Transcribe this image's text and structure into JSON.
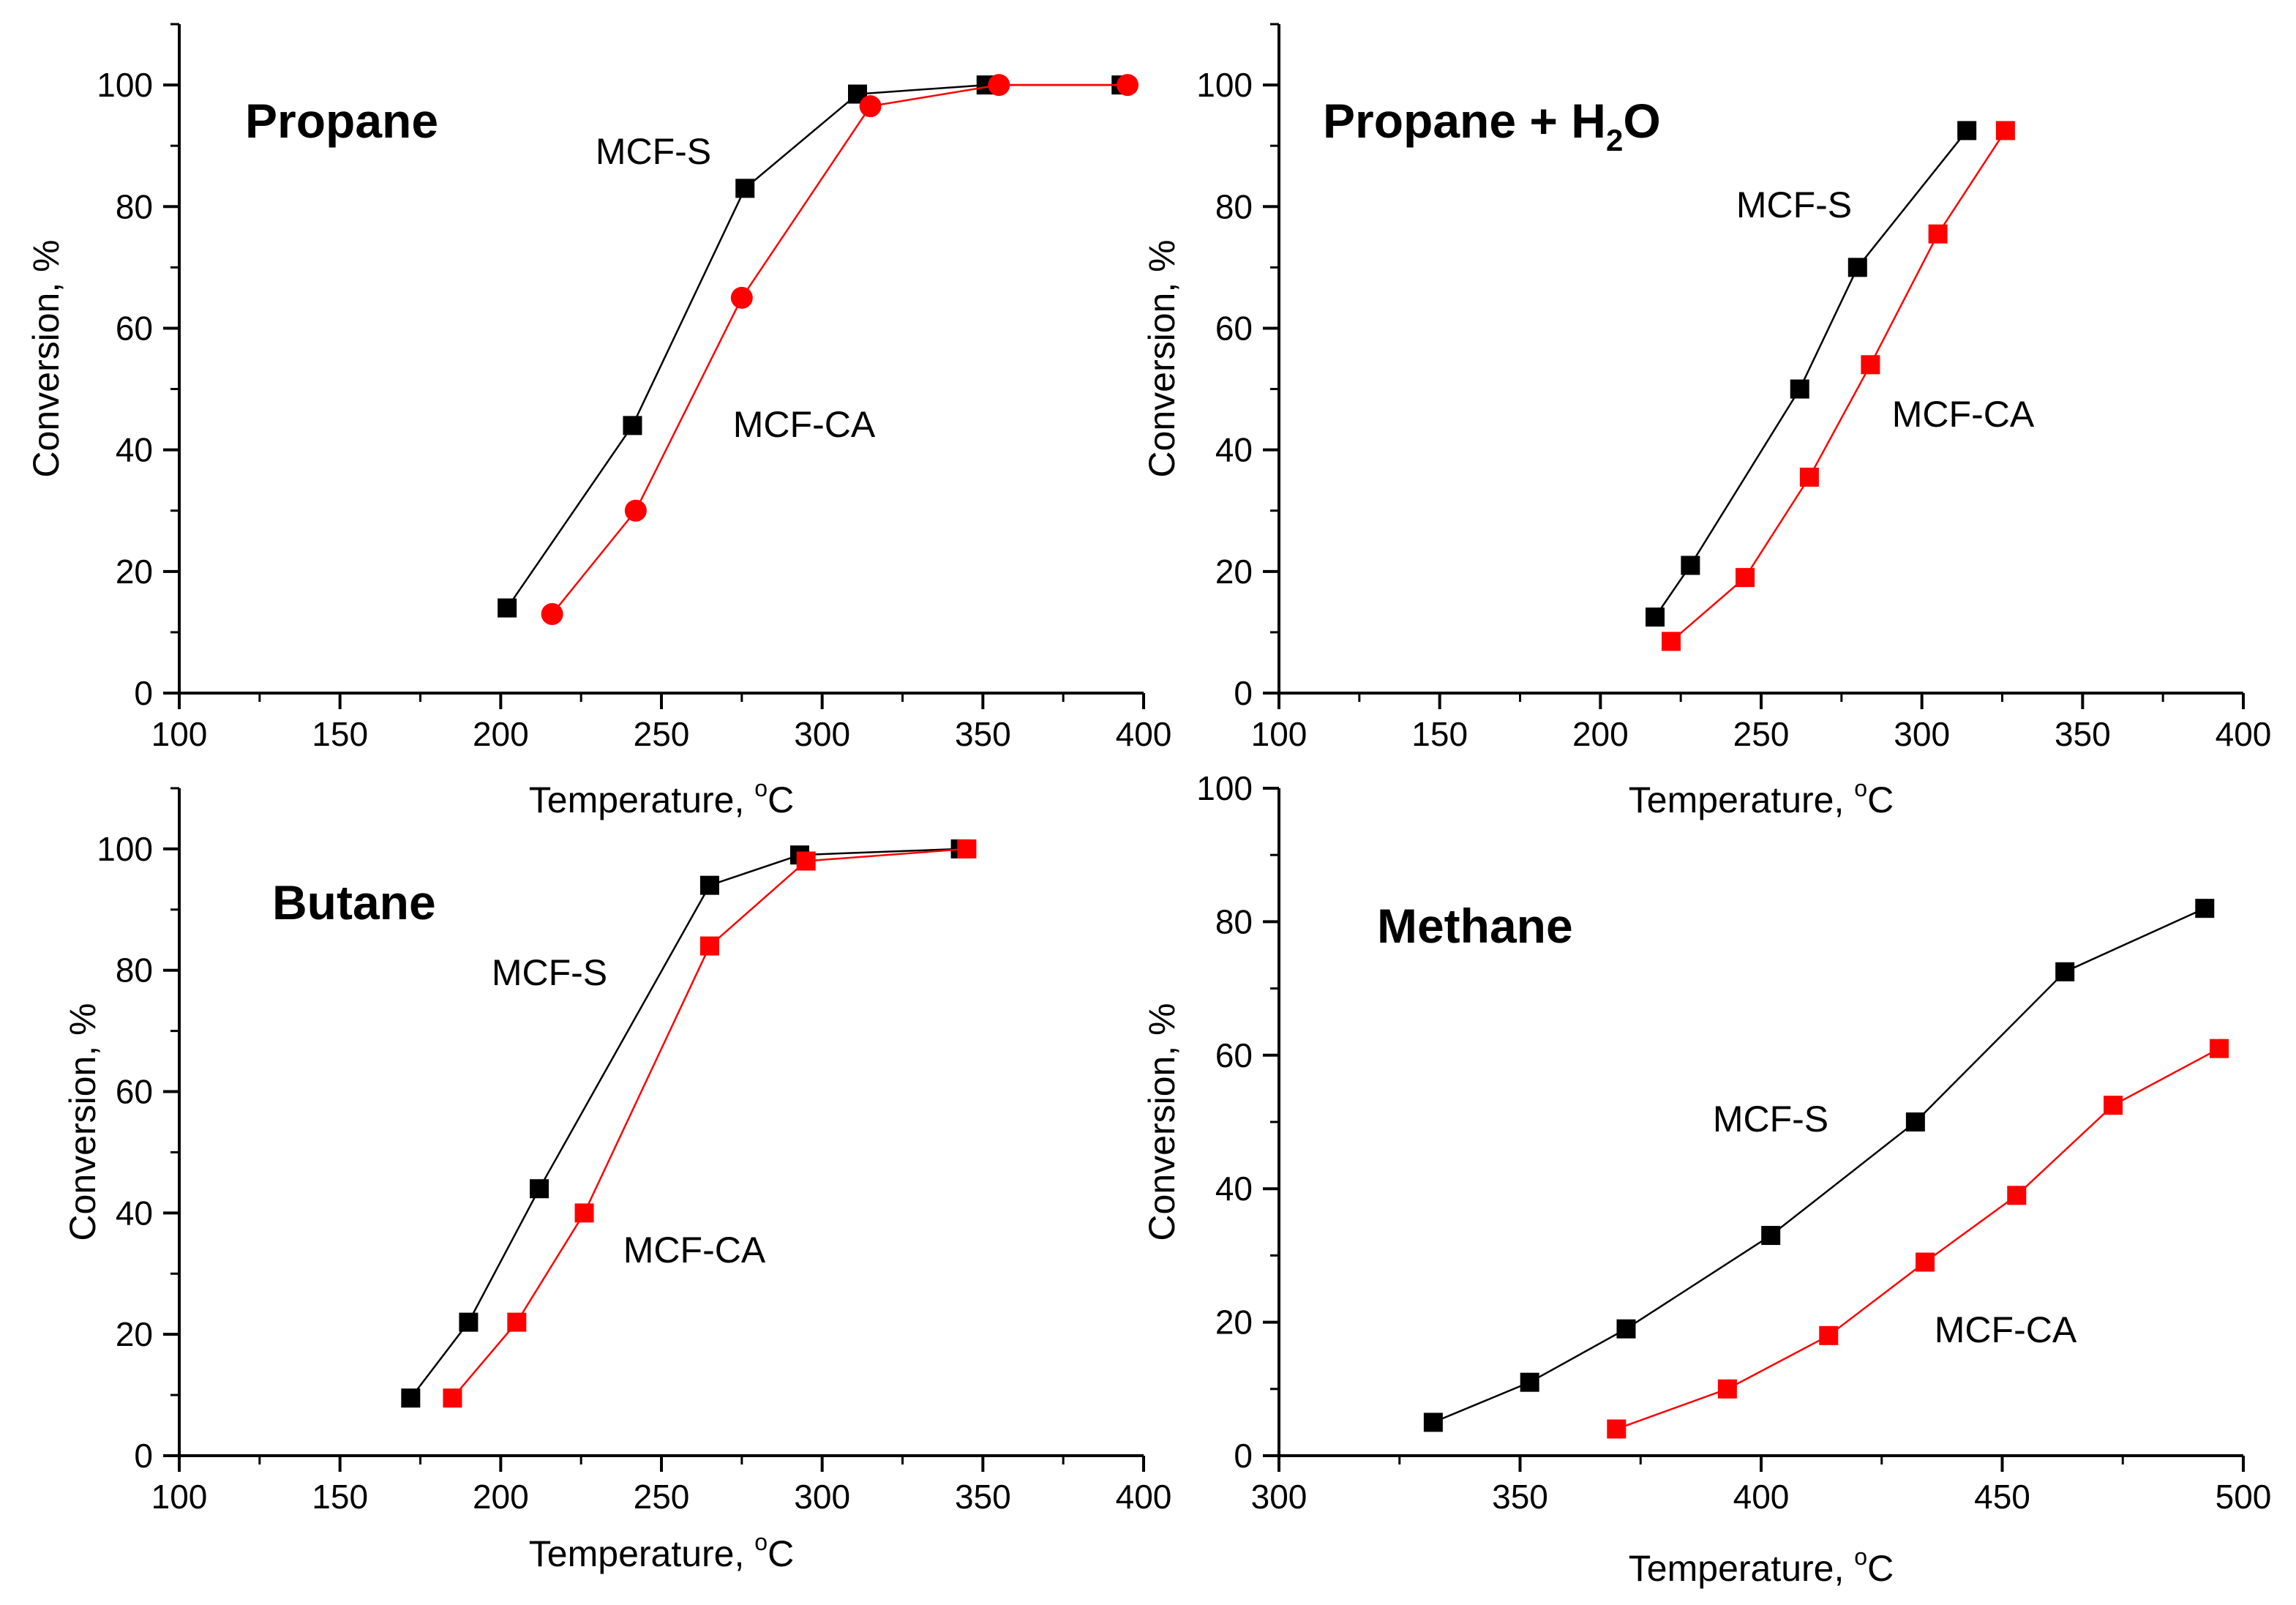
{
  "chart_data": [
    {
      "id": "propane",
      "type": "line",
      "title": "Propane",
      "title_sub": "",
      "title_tail": "",
      "xlabel": "Temperature, ",
      "xlabel_unit_sup": "o",
      "xlabel_unit": "C",
      "ylabel": "Conversion, %",
      "xlim": [
        100,
        400
      ],
      "ylim": [
        0,
        110
      ],
      "xticks": [
        100,
        150,
        200,
        250,
        300,
        350,
        400
      ],
      "yticks": [
        0,
        20,
        40,
        60,
        80,
        100
      ],
      "series": [
        {
          "name": "MCF-S",
          "color": "#000000",
          "marker": "square",
          "x": [
            202,
            241,
            276,
            311,
            351,
            393
          ],
          "y": [
            14,
            44,
            83,
            98.5,
            100,
            100
          ]
        },
        {
          "name": "MCF-CA",
          "color": "#ff0000",
          "marker": "circle",
          "x": [
            216,
            242,
            275,
            315,
            355,
            395
          ],
          "y": [
            13,
            30,
            65,
            96.5,
            100,
            100
          ]
        }
      ]
    },
    {
      "id": "propane-h2o",
      "type": "line",
      "title": "Propane + H",
      "title_sub": "2",
      "title_tail": "O",
      "xlabel": "Temperature, ",
      "xlabel_unit_sup": "o",
      "xlabel_unit": "C",
      "ylabel": "Conversion, %",
      "xlim": [
        100,
        400
      ],
      "ylim": [
        0,
        110
      ],
      "xticks": [
        100,
        150,
        200,
        250,
        300,
        350,
        400
      ],
      "yticks": [
        0,
        20,
        40,
        60,
        80,
        100
      ],
      "series": [
        {
          "name": "MCF-S",
          "color": "#000000",
          "marker": "square",
          "x": [
            217,
            228,
            262,
            280,
            314
          ],
          "y": [
            12.5,
            21,
            50,
            70,
            92.5
          ]
        },
        {
          "name": "MCF-CA",
          "color": "#ff0000",
          "marker": "square",
          "x": [
            222,
            245,
            265,
            284,
            305,
            326
          ],
          "y": [
            8.5,
            19,
            35.5,
            54,
            75.5,
            92.5
          ]
        }
      ]
    },
    {
      "id": "butane",
      "type": "line",
      "title": "Butane",
      "title_sub": "",
      "title_tail": "",
      "xlabel": "Temperature, ",
      "xlabel_unit_sup": "o",
      "xlabel_unit": "C",
      "ylabel": "Conversion, %",
      "xlim": [
        100,
        400
      ],
      "ylim": [
        0,
        110
      ],
      "xticks": [
        100,
        150,
        200,
        250,
        300,
        350,
        400
      ],
      "yticks": [
        0,
        20,
        40,
        60,
        80,
        100
      ],
      "series": [
        {
          "name": "MCF-S",
          "color": "#000000",
          "marker": "square",
          "x": [
            172,
            190,
            212,
            265,
            293,
            343
          ],
          "y": [
            9.5,
            22,
            44,
            94,
            99,
            100
          ]
        },
        {
          "name": "MCF-CA",
          "color": "#ff0000",
          "marker": "square",
          "x": [
            185,
            205,
            226,
            265,
            295,
            345
          ],
          "y": [
            9.5,
            22,
            40,
            84,
            98,
            100
          ]
        }
      ]
    },
    {
      "id": "methane",
      "type": "line",
      "title": "Methane",
      "title_sub": "",
      "title_tail": "",
      "xlabel": "Temperature, ",
      "xlabel_unit_sup": "o",
      "xlabel_unit": "C",
      "ylabel": "Conversion, %",
      "xlim": [
        300,
        500
      ],
      "ylim": [
        0,
        100
      ],
      "xticks": [
        300,
        350,
        400,
        450,
        500
      ],
      "yticks": [
        0,
        20,
        40,
        60,
        80,
        100
      ],
      "series": [
        {
          "name": "MCF-S",
          "color": "#000000",
          "marker": "square",
          "x": [
            332,
            352,
            372,
            402,
            432,
            463,
            492
          ],
          "y": [
            5,
            11,
            19,
            33,
            50,
            72.5,
            82
          ]
        },
        {
          "name": "MCF-CA",
          "color": "#ff0000",
          "marker": "square",
          "x": [
            370,
            393,
            414,
            434,
            453,
            473,
            495
          ],
          "y": [
            4,
            10,
            18,
            29,
            39,
            52.5,
            61
          ]
        }
      ]
    }
  ]
}
